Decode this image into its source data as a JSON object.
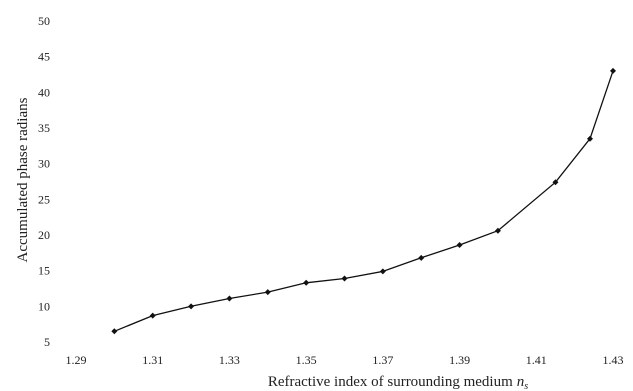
{
  "chart_data": {
    "type": "line",
    "title": "",
    "xlabel": "Refractive index of surrounding medium",
    "xlabel_symbol": "n",
    "xlabel_subscript": "s",
    "ylabel": "Accumulated phase radians",
    "xlim": [
      1.29,
      1.43
    ],
    "ylim": [
      5,
      50
    ],
    "x_ticks": [
      "1.29",
      "1.31",
      "1.33",
      "1.35",
      "1.37",
      "1.39",
      "1.41",
      "1.43"
    ],
    "y_ticks": [
      "5",
      "10",
      "15",
      "20",
      "25",
      "30",
      "35",
      "40",
      "45",
      "50"
    ],
    "grid": false,
    "legend": "none",
    "marker": "diamond",
    "line_color": "#111111",
    "series": [
      {
        "x": [
          1.3,
          1.31,
          1.32,
          1.33,
          1.34,
          1.35,
          1.36,
          1.37,
          1.38,
          1.39,
          1.4,
          1.415,
          1.424,
          1.43
        ],
        "y": [
          6.5,
          8.7,
          10.0,
          11.1,
          12.0,
          13.3,
          13.9,
          14.9,
          16.8,
          18.6,
          20.6,
          27.4,
          33.5,
          43.0
        ]
      }
    ]
  }
}
